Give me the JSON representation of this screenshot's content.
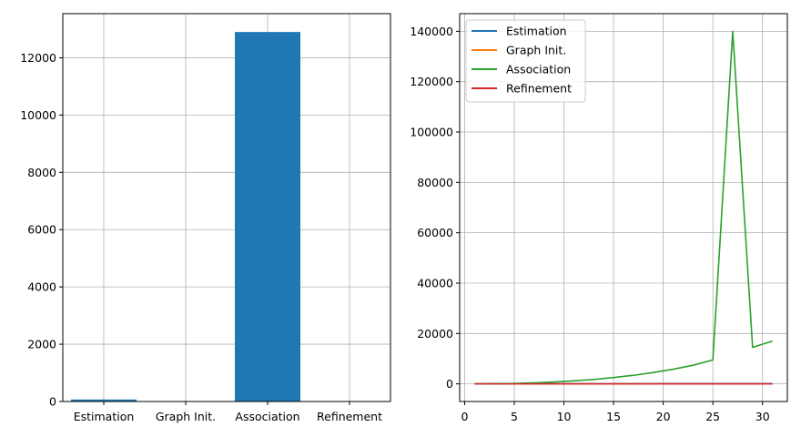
{
  "chart_data": [
    {
      "type": "bar",
      "categories": [
        "Estimation",
        "Graph Init.",
        "Association",
        "Refinement"
      ],
      "values": [
        70,
        3,
        12900,
        5
      ],
      "ylim": [
        0,
        13540
      ],
      "yticks": [
        0,
        2000,
        4000,
        6000,
        8000,
        10000,
        12000
      ],
      "grid": true,
      "color": "#1f77b4"
    },
    {
      "type": "line",
      "x": [
        1,
        3,
        5,
        7,
        9,
        11,
        13,
        15,
        17,
        19,
        21,
        23,
        25,
        27,
        29,
        31
      ],
      "series": [
        {
          "name": "Estimation",
          "color": "#1f77b4",
          "values": [
            50,
            55,
            60,
            65,
            70,
            75,
            80,
            85,
            90,
            95,
            100,
            105,
            110,
            115,
            120,
            125
          ]
        },
        {
          "name": "Graph Init.",
          "color": "#ff7f0e",
          "values": [
            2,
            2,
            3,
            3,
            3,
            3,
            4,
            4,
            4,
            4,
            5,
            5,
            5,
            5,
            6,
            6
          ]
        },
        {
          "name": "Association",
          "color": "#2ca02c",
          "values": [
            5,
            40,
            150,
            400,
            750,
            1200,
            1750,
            2500,
            3400,
            4500,
            5800,
            7400,
            9500,
            140000,
            14500,
            17000
          ]
        },
        {
          "name": "Refinement",
          "color": "#d62728",
          "values": [
            3,
            3,
            3,
            4,
            4,
            4,
            4,
            5,
            5,
            5,
            5,
            6,
            6,
            6,
            7,
            7
          ]
        }
      ],
      "xlim": [
        -0.5,
        32.5
      ],
      "ylim": [
        -7000,
        147000
      ],
      "xticks": [
        0,
        5,
        10,
        15,
        20,
        25,
        30
      ],
      "yticks": [
        0,
        20000,
        40000,
        60000,
        80000,
        100000,
        120000,
        140000
      ],
      "grid": true,
      "legend": "top-left"
    }
  ]
}
